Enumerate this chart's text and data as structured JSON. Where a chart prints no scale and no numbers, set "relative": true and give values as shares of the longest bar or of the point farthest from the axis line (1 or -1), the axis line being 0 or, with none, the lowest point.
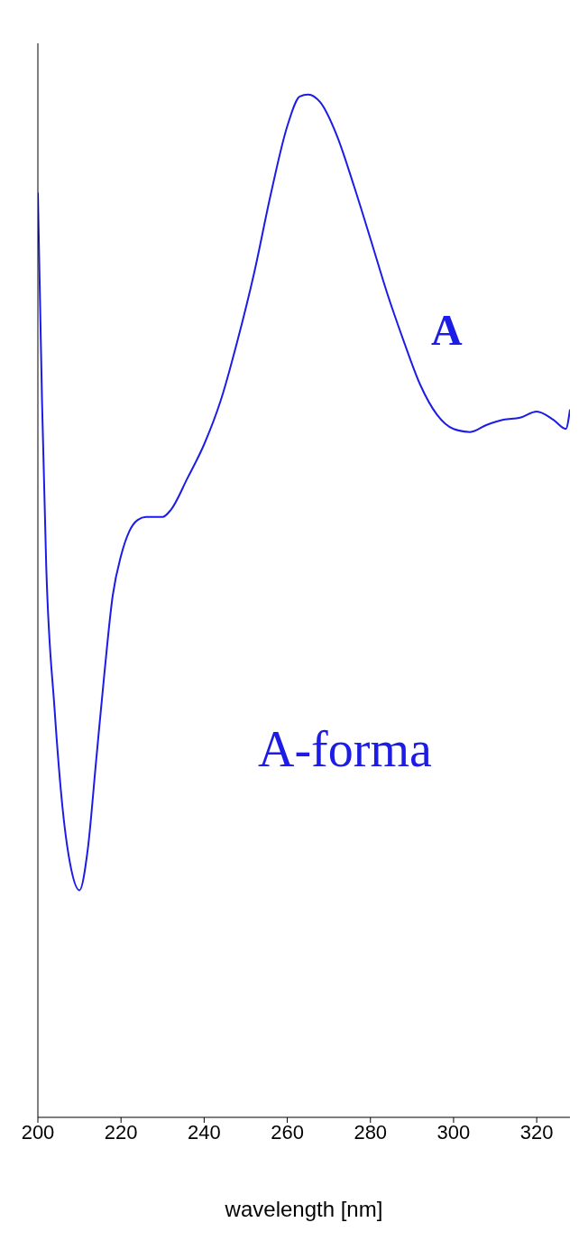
{
  "chart_data": {
    "type": "line",
    "relative": true,
    "xlabel": "wavelength [nm]",
    "xlim": [
      200,
      328
    ],
    "xticks": [
      200,
      220,
      240,
      260,
      280,
      300,
      320
    ],
    "marker": "none",
    "line_style": "solid",
    "annotations": [
      "A",
      "A-forma"
    ],
    "series": [
      {
        "color": "#1c1ce6",
        "x": [
          200,
          201,
          202,
          204,
          206,
          208,
          210,
          212,
          214,
          216,
          218,
          220,
          222,
          224,
          226,
          230,
          232,
          236,
          240,
          244,
          248,
          252,
          256,
          260,
          263,
          265,
          268,
          272,
          276,
          280,
          284,
          288,
          292,
          296,
          300,
          304,
          308,
          312,
          316,
          320,
          324,
          327,
          328
        ],
        "values": [
          0.904,
          0.7,
          0.54,
          0.4,
          0.3,
          0.243,
          0.222,
          0.262,
          0.348,
          0.434,
          0.51,
          0.549,
          0.573,
          0.584,
          0.587,
          0.587,
          0.594,
          0.625,
          0.658,
          0.701,
          0.759,
          0.825,
          0.902,
          0.969,
          0.998,
          1,
          0.992,
          0.959,
          0.911,
          0.859,
          0.806,
          0.759,
          0.716,
          0.687,
          0.673,
          0.67,
          0.677,
          0.682,
          0.684,
          0.69,
          0.682,
          0.673,
          0.692
        ]
      }
    ]
  }
}
